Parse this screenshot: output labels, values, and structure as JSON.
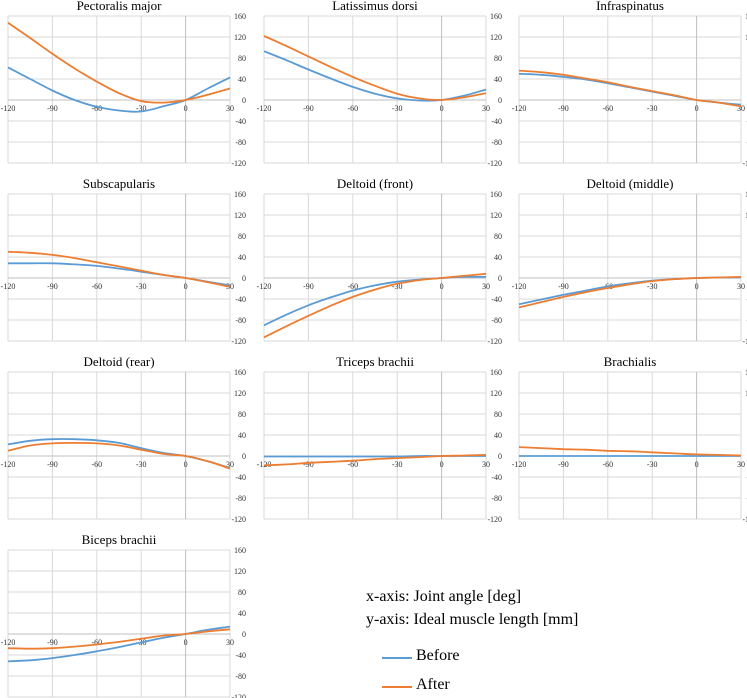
{
  "colors": {
    "before": "#5B9BD5",
    "after": "#ED7D31",
    "grid": "#D9D9D9",
    "axis": "#BFBFBF"
  },
  "axis_info": {
    "x_text": "x-axis: Joint angle [deg]",
    "y_text": "y-axis: Ideal muscle length [mm]"
  },
  "legend": {
    "before": "Before",
    "after": "After"
  },
  "chart_data": [
    {
      "type": "line",
      "title": "Pectoralis major",
      "x": [
        -120,
        -105,
        -90,
        -75,
        -60,
        -45,
        -30,
        -15,
        0,
        15,
        30
      ],
      "series": [
        {
          "name": "Before",
          "values": [
            62,
            40,
            18,
            0,
            -13,
            -20,
            -22,
            -12,
            0,
            22,
            43
          ]
        },
        {
          "name": "After",
          "values": [
            147,
            118,
            88,
            60,
            35,
            13,
            -2,
            -5,
            0,
            10,
            22
          ]
        }
      ],
      "xticks": [
        -120,
        -90,
        -60,
        -30,
        0,
        30
      ],
      "yticks": [
        160,
        120,
        80,
        40,
        0,
        -40,
        -80,
        -120
      ],
      "xlim": [
        -120,
        30
      ],
      "ylim": [
        -120,
        160
      ]
    },
    {
      "type": "line",
      "title": "Latissimus dorsi",
      "x": [
        -120,
        -105,
        -90,
        -75,
        -60,
        -45,
        -30,
        -15,
        0,
        15,
        30
      ],
      "series": [
        {
          "name": "Before",
          "values": [
            93,
            76,
            58,
            41,
            25,
            12,
            3,
            -1,
            0,
            8,
            20
          ]
        },
        {
          "name": "After",
          "values": [
            122,
            103,
            83,
            63,
            44,
            27,
            12,
            3,
            0,
            5,
            13
          ]
        }
      ],
      "xticks": [
        -120,
        -90,
        -60,
        -30,
        0,
        30
      ],
      "yticks": [
        160,
        120,
        80,
        40,
        0,
        -40,
        -80,
        -120
      ],
      "xlim": [
        -120,
        30
      ],
      "ylim": [
        -120,
        160
      ]
    },
    {
      "type": "line",
      "title": "Infraspinatus",
      "x": [
        -120,
        -105,
        -90,
        -75,
        -60,
        -45,
        -30,
        -15,
        0,
        15,
        30
      ],
      "series": [
        {
          "name": "Before",
          "values": [
            50,
            48,
            44,
            39,
            32,
            24,
            16,
            8,
            0,
            -5,
            -9
          ]
        },
        {
          "name": "After",
          "values": [
            56,
            53,
            48,
            41,
            34,
            25,
            17,
            9,
            0,
            -5,
            -12
          ]
        }
      ],
      "xticks": [
        -120,
        -90,
        -60,
        -30,
        0,
        30
      ],
      "yticks": [
        160,
        120,
        80,
        40,
        0,
        -40,
        -80,
        -120
      ],
      "xlim": [
        -120,
        30
      ],
      "ylim": [
        -120,
        160
      ]
    },
    {
      "type": "line",
      "title": "Subscapularis",
      "x": [
        -120,
        -105,
        -90,
        -75,
        -60,
        -45,
        -30,
        -15,
        0,
        15,
        30
      ],
      "series": [
        {
          "name": "Before",
          "values": [
            28,
            28,
            28,
            26,
            23,
            18,
            12,
            6,
            0,
            -7,
            -14
          ]
        },
        {
          "name": "After",
          "values": [
            50,
            48,
            44,
            38,
            30,
            22,
            14,
            6,
            0,
            -8,
            -17
          ]
        }
      ],
      "xticks": [
        -120,
        -90,
        -60,
        -30,
        0,
        30
      ],
      "yticks": [
        160,
        120,
        80,
        40,
        0,
        -40,
        -80,
        -120
      ],
      "xlim": [
        -120,
        30
      ],
      "ylim": [
        -120,
        160
      ]
    },
    {
      "type": "line",
      "title": "Deltoid (front)",
      "x": [
        -120,
        -105,
        -90,
        -75,
        -60,
        -45,
        -30,
        -15,
        0,
        15,
        30
      ],
      "series": [
        {
          "name": "Before",
          "values": [
            -90,
            -70,
            -52,
            -37,
            -24,
            -14,
            -7,
            -3,
            0,
            2,
            2
          ]
        },
        {
          "name": "After",
          "values": [
            -113,
            -92,
            -72,
            -53,
            -36,
            -22,
            -11,
            -4,
            0,
            4,
            8
          ]
        }
      ],
      "xticks": [
        -120,
        -90,
        -60,
        -30,
        0,
        30
      ],
      "yticks": [
        160,
        120,
        80,
        40,
        0,
        -40,
        -80,
        -120
      ],
      "xlim": [
        -120,
        30
      ],
      "ylim": [
        -120,
        160
      ]
    },
    {
      "type": "line",
      "title": "Deltoid (middle)",
      "x": [
        -120,
        -105,
        -90,
        -75,
        -60,
        -45,
        -30,
        -15,
        0,
        15,
        30
      ],
      "series": [
        {
          "name": "Before",
          "values": [
            -50,
            -41,
            -32,
            -24,
            -16,
            -10,
            -5,
            -2,
            0,
            1,
            1
          ]
        },
        {
          "name": "After",
          "values": [
            -56,
            -46,
            -36,
            -27,
            -19,
            -12,
            -6,
            -2,
            0,
            1,
            2
          ]
        }
      ],
      "xticks": [
        -120,
        -90,
        -60,
        -30,
        0,
        30
      ],
      "yticks": [
        160,
        120,
        80,
        40,
        0,
        -40,
        -80,
        -120
      ],
      "xlim": [
        -120,
        30
      ],
      "ylim": [
        -120,
        160
      ]
    },
    {
      "type": "line",
      "title": "Deltoid (rear)",
      "x": [
        -120,
        -105,
        -90,
        -75,
        -60,
        -45,
        -30,
        -15,
        0,
        15,
        30
      ],
      "series": [
        {
          "name": "Before",
          "values": [
            22,
            29,
            32,
            32,
            30,
            25,
            15,
            6,
            0,
            -10,
            -23
          ]
        },
        {
          "name": "After",
          "values": [
            10,
            20,
            24,
            25,
            24,
            20,
            12,
            4,
            0,
            -10,
            -24
          ]
        }
      ],
      "xticks": [
        -120,
        -90,
        -60,
        -30,
        0,
        30
      ],
      "yticks": [
        160,
        120,
        80,
        40,
        0,
        -40,
        -80,
        -120
      ],
      "xlim": [
        -120,
        30
      ],
      "ylim": [
        -120,
        160
      ]
    },
    {
      "type": "line",
      "title": "Triceps brachii",
      "x": [
        -120,
        -105,
        -90,
        -75,
        -60,
        -45,
        -30,
        -15,
        0,
        15,
        30
      ],
      "series": [
        {
          "name": "Before",
          "values": [
            -1,
            -1,
            -1,
            -1,
            -1,
            -1,
            -1,
            0,
            0,
            0,
            0
          ]
        },
        {
          "name": "After",
          "values": [
            -18,
            -16,
            -13,
            -11,
            -9,
            -6,
            -4,
            -2,
            0,
            1,
            2
          ]
        }
      ],
      "xticks": [
        -120,
        -90,
        -60,
        -30,
        0,
        30
      ],
      "yticks": [
        160,
        120,
        80,
        40,
        0,
        -40,
        -80,
        -120
      ],
      "xlim": [
        -120,
        30
      ],
      "ylim": [
        -120,
        160
      ]
    },
    {
      "type": "line",
      "title": "Brachialis",
      "x": [
        -120,
        -105,
        -90,
        -75,
        -60,
        -45,
        -30,
        -15,
        0,
        15,
        30
      ],
      "series": [
        {
          "name": "Before",
          "values": [
            0,
            0,
            0,
            0,
            0,
            0,
            0,
            0,
            0,
            0,
            0
          ]
        },
        {
          "name": "After",
          "values": [
            17,
            15,
            13,
            12,
            10,
            9,
            7,
            5,
            3,
            2,
            1
          ]
        }
      ],
      "xticks": [
        -120,
        -90,
        -60,
        -30,
        0,
        30
      ],
      "yticks": [
        160,
        120,
        80,
        40,
        0,
        -40,
        -80,
        -120
      ],
      "xlim": [
        -120,
        30
      ],
      "ylim": [
        -120,
        160
      ]
    },
    {
      "type": "line",
      "title": "Biceps brachii",
      "x": [
        -120,
        -105,
        -90,
        -75,
        -60,
        -45,
        -30,
        -15,
        0,
        15,
        30
      ],
      "series": [
        {
          "name": "Before",
          "values": [
            -52,
            -50,
            -46,
            -40,
            -33,
            -25,
            -16,
            -7,
            0,
            8,
            14
          ]
        },
        {
          "name": "After",
          "values": [
            -27,
            -28,
            -27,
            -24,
            -20,
            -15,
            -9,
            -3,
            0,
            5,
            9
          ]
        }
      ],
      "xticks": [
        -120,
        -90,
        -60,
        -30,
        0,
        30
      ],
      "yticks": [
        160,
        120,
        80,
        40,
        0,
        -40,
        -80,
        -120
      ],
      "xlim": [
        -120,
        30
      ],
      "ylim": [
        -120,
        160
      ]
    }
  ]
}
